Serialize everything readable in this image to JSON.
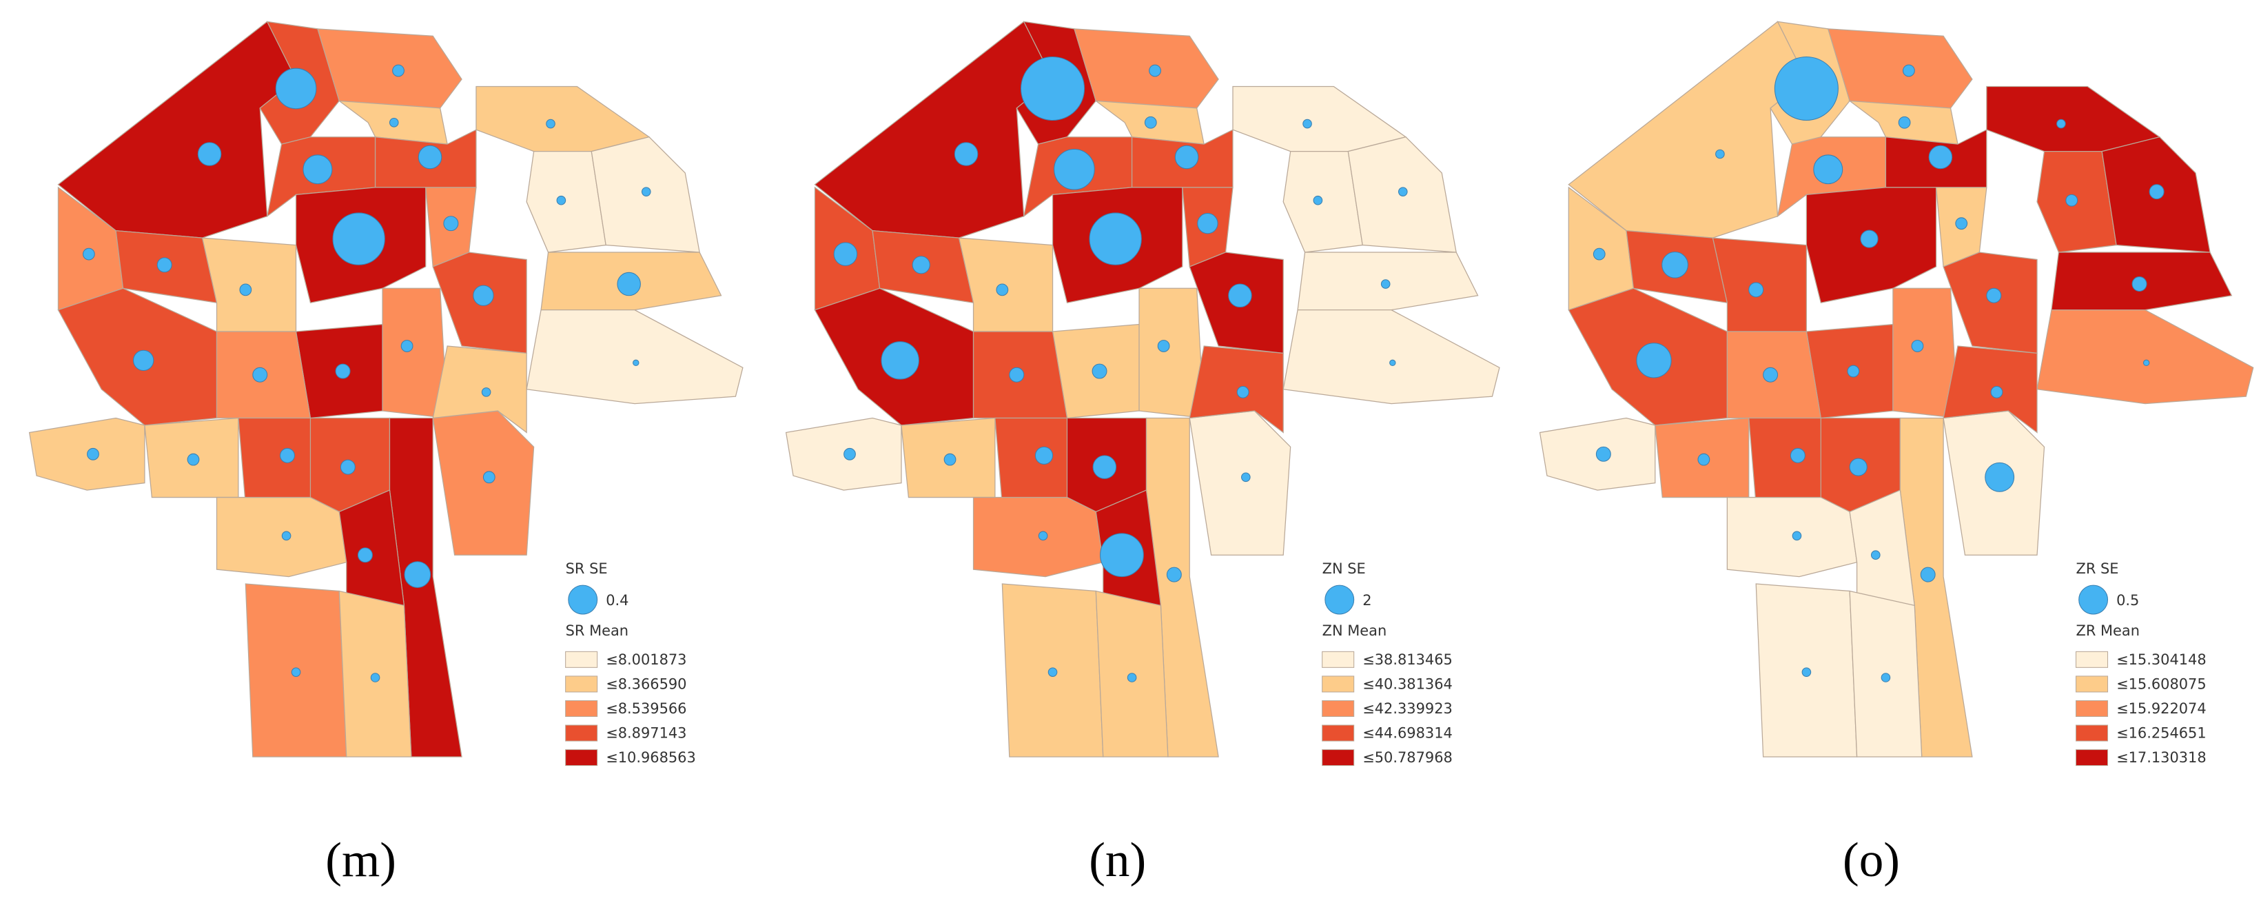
{
  "panels": [
    {
      "label": "(m)",
      "size_legend": {
        "title": "SR SE",
        "label": "0.4"
      },
      "mean_legend": {
        "title": "SR Mean",
        "classes": [
          "≤8.001873",
          "≤8.366590",
          "≤8.539566",
          "≤8.897143",
          "≤10.968563"
        ],
        "colors": [
          "#fef0d9",
          "#fdcc8a",
          "#fc8d59",
          "#e9502f",
          "#c8100d"
        ]
      }
    },
    {
      "label": "(n)",
      "size_legend": {
        "title": "ZN SE",
        "label": "2"
      },
      "mean_legend": {
        "title": "ZN Mean",
        "classes": [
          "≤38.813465",
          "≤40.381364",
          "≤42.339923",
          "≤44.698314",
          "≤50.787968"
        ],
        "colors": [
          "#fef0d9",
          "#fdcc8a",
          "#fc8d59",
          "#e9502f",
          "#c8100d"
        ]
      }
    },
    {
      "label": "(o)",
      "size_legend": {
        "title": "ZR SE",
        "label": "0.5"
      },
      "mean_legend": {
        "title": "ZR Mean",
        "classes": [
          "≤15.304148",
          "≤15.608075",
          "≤15.922074",
          "≤16.254651",
          "≤17.130318"
        ],
        "colors": [
          "#fef0d9",
          "#fdcc8a",
          "#fc8d59",
          "#e9502f",
          "#c8100d"
        ]
      }
    }
  ]
}
